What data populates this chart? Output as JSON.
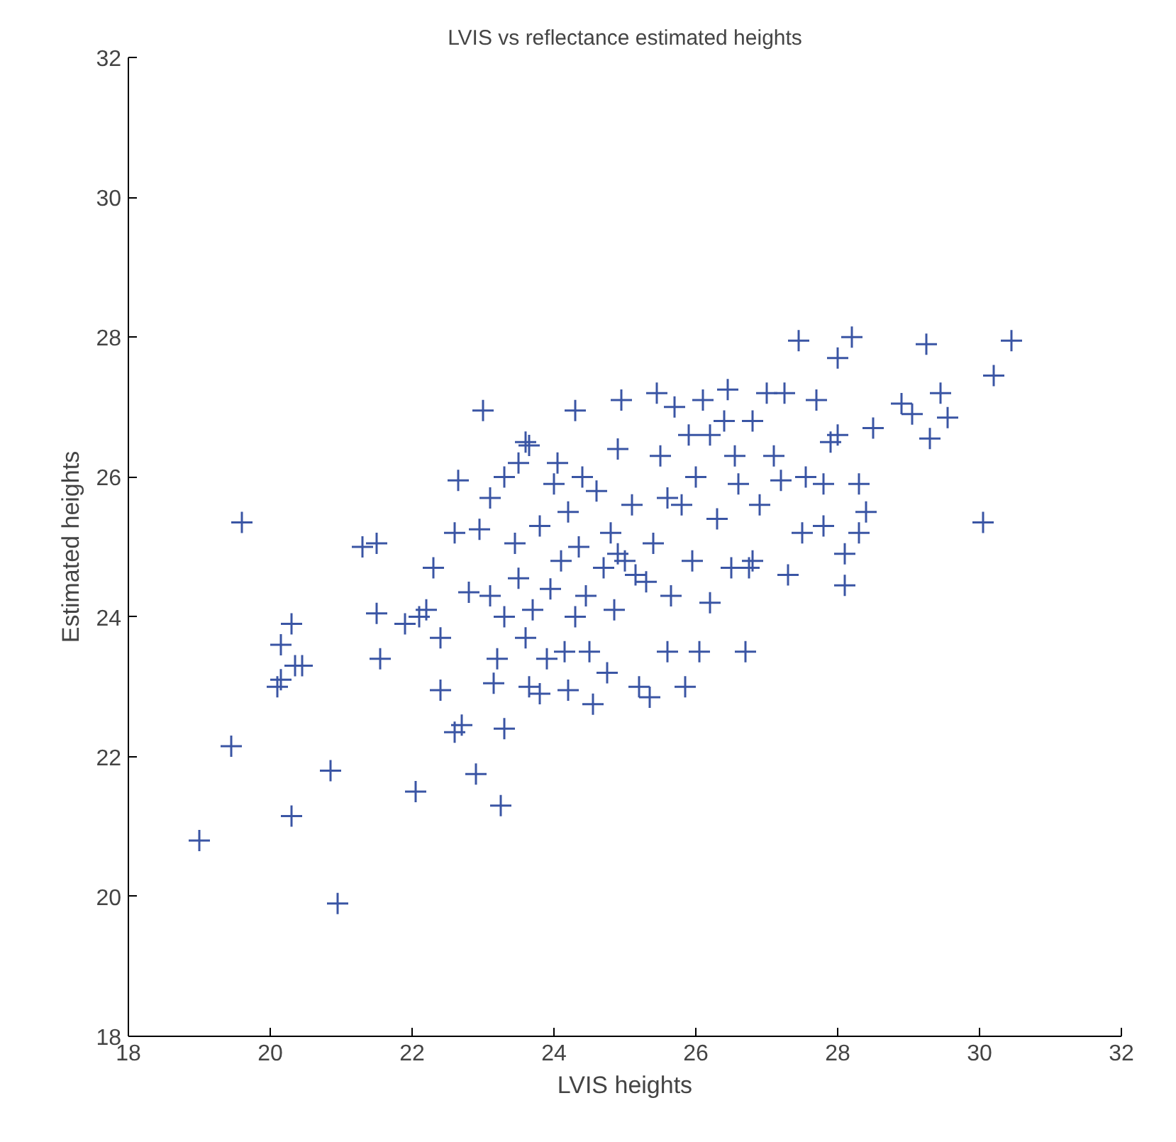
{
  "chart_data": {
    "type": "scatter",
    "title": "LVIS vs reflectance estimated heights",
    "xlabel": "LVIS heights",
    "ylabel": "Estimated heights",
    "marker": "cross",
    "xlim": [
      18,
      32
    ],
    "ylim": [
      18,
      32
    ],
    "xticks": [
      18,
      20,
      22,
      24,
      26,
      28,
      30,
      32
    ],
    "yticks": [
      18,
      20,
      22,
      24,
      26,
      28,
      30,
      32
    ],
    "series": [
      {
        "color": "#3a55a4",
        "x": [
          19.0,
          19.45,
          19.6,
          20.1,
          20.15,
          20.15,
          20.3,
          20.35,
          20.45,
          20.3,
          20.85,
          20.95,
          21.3,
          21.5,
          21.5,
          21.55,
          21.9,
          22.05,
          22.2,
          22.3,
          22.4,
          22.4,
          22.6,
          22.7,
          22.6,
          22.65,
          22.8,
          22.9,
          22.95,
          23.0,
          23.1,
          23.1,
          23.15,
          23.2,
          23.25,
          23.3,
          23.3,
          23.3,
          23.5,
          23.6,
          23.45,
          23.5,
          23.6,
          23.65,
          23.7,
          23.8,
          23.8,
          23.9,
          23.95,
          24.0,
          24.05,
          24.1,
          24.15,
          24.2,
          24.2,
          24.3,
          24.3,
          24.35,
          24.4,
          24.5,
          24.55,
          24.6,
          24.7,
          24.75,
          24.8,
          24.85,
          24.9,
          24.95,
          25.0,
          25.1,
          25.2,
          25.3,
          25.35,
          25.4,
          25.45,
          25.5,
          25.6,
          25.65,
          25.7,
          25.8,
          25.85,
          25.9,
          25.95,
          26.0,
          26.05,
          26.1,
          26.2,
          26.3,
          26.4,
          26.45,
          26.5,
          26.55,
          26.6,
          26.7,
          26.75,
          26.8,
          26.9,
          27.0,
          27.1,
          27.2,
          27.25,
          27.3,
          27.45,
          27.5,
          27.55,
          27.7,
          27.8,
          27.9,
          28.0,
          28.1,
          28.1,
          28.2,
          28.3,
          28.3,
          28.4,
          28.5,
          28.0,
          28.9,
          29.05,
          29.25,
          29.3,
          29.45,
          29.55,
          30.05,
          30.2,
          30.45,
          23.65,
          24.9,
          25.6,
          26.2,
          24.45,
          25.15,
          22.1,
          26.8,
          27.8
        ],
        "values": [
          20.8,
          22.15,
          25.35,
          23.0,
          23.1,
          23.6,
          23.9,
          23.3,
          23.3,
          21.15,
          21.8,
          19.9,
          25.0,
          25.05,
          24.05,
          23.4,
          23.9,
          21.5,
          24.1,
          24.7,
          22.95,
          23.7,
          22.35,
          22.45,
          25.2,
          25.95,
          24.35,
          21.75,
          25.25,
          26.95,
          24.3,
          25.7,
          23.05,
          23.4,
          21.3,
          22.4,
          24.0,
          26.0,
          26.2,
          26.5,
          25.05,
          24.55,
          23.7,
          23.0,
          24.1,
          22.9,
          25.3,
          23.4,
          24.4,
          25.9,
          26.2,
          24.8,
          23.5,
          22.95,
          25.5,
          26.95,
          24.0,
          25.0,
          26.0,
          23.5,
          22.75,
          25.8,
          24.7,
          23.2,
          25.2,
          24.1,
          26.4,
          27.1,
          24.8,
          25.6,
          23.0,
          24.5,
          22.85,
          25.05,
          27.2,
          26.3,
          23.5,
          24.3,
          27.0,
          25.6,
          23.0,
          26.6,
          24.8,
          26.0,
          23.5,
          27.1,
          24.2,
          25.4,
          26.8,
          27.25,
          24.7,
          26.3,
          25.9,
          23.5,
          24.7,
          26.8,
          25.6,
          27.2,
          26.3,
          25.95,
          27.2,
          24.6,
          27.95,
          25.2,
          26.0,
          27.1,
          25.9,
          26.5,
          27.7,
          24.45,
          24.9,
          28.0,
          25.2,
          25.9,
          25.5,
          26.7,
          26.6,
          27.05,
          26.9,
          27.9,
          26.55,
          27.2,
          26.85,
          25.35,
          27.45,
          27.95,
          26.45,
          24.9,
          25.7,
          26.6,
          24.3,
          24.6,
          24.0,
          24.8,
          25.3
        ]
      }
    ]
  }
}
